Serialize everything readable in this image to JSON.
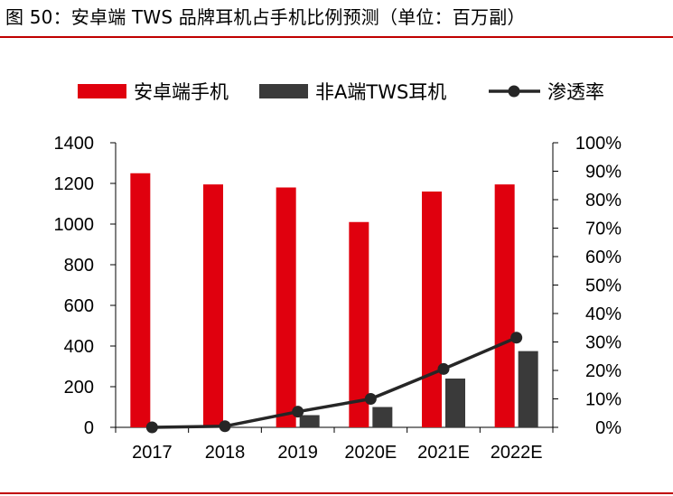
{
  "title": "图 50：安卓端 TWS 品牌耳机占手机比例预测（单位：百万副）",
  "colors": {
    "android": "#e0000e",
    "tws": "#3a3a3a",
    "rate": "#262626",
    "rule": "#c00000"
  },
  "chart_data": {
    "type": "bar",
    "categories": [
      "2017",
      "2018",
      "2019",
      "2020E",
      "2021E",
      "2022E"
    ],
    "series": [
      {
        "name": "安卓端手机",
        "type": "bar",
        "axis": "left",
        "values": [
          1250,
          1195,
          1180,
          1010,
          1160,
          1195
        ]
      },
      {
        "name": "非A端TWS耳机",
        "type": "bar",
        "axis": "left",
        "values": [
          0,
          3,
          60,
          100,
          240,
          375
        ]
      },
      {
        "name": "渗透率",
        "type": "line",
        "axis": "right",
        "values": [
          0,
          0.4,
          5.5,
          10,
          20.5,
          31.5
        ]
      }
    ],
    "ylim": [
      0,
      1400
    ],
    "yticks": [
      "0",
      "200",
      "400",
      "600",
      "800",
      "1000",
      "1200",
      "1400"
    ],
    "y2lim": [
      0,
      100
    ],
    "y2ticks": [
      "0%",
      "10%",
      "20%",
      "30%",
      "40%",
      "50%",
      "60%",
      "70%",
      "80%",
      "90%",
      "100%"
    ],
    "legend_position": "top",
    "grid": false
  }
}
